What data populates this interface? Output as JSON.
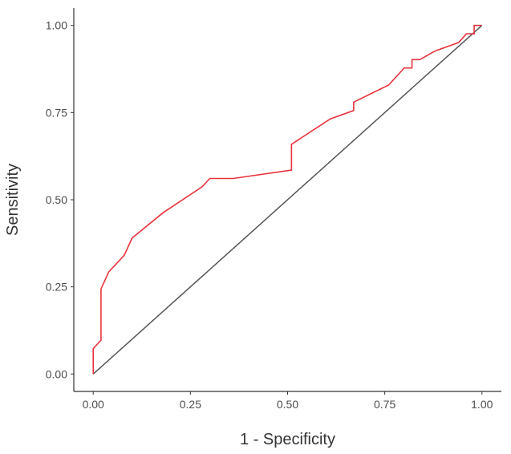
{
  "chart_data": {
    "type": "line",
    "title": "",
    "xlabel": "1 - Specificity",
    "ylabel": "Sensitivity",
    "xlim": [
      -0.05,
      1.05
    ],
    "ylim": [
      -0.05,
      1.05
    ],
    "xticks": [
      {
        "value": 0.0,
        "label": "0.00"
      },
      {
        "value": 0.25,
        "label": "0.25"
      },
      {
        "value": 0.5,
        "label": "0.50"
      },
      {
        "value": 0.75,
        "label": "0.75"
      },
      {
        "value": 1.0,
        "label": "1.00"
      }
    ],
    "yticks": [
      {
        "value": 0.0,
        "label": "0.00"
      },
      {
        "value": 0.25,
        "label": "0.25"
      },
      {
        "value": 0.5,
        "label": "0.50"
      },
      {
        "value": 0.75,
        "label": "0.75"
      },
      {
        "value": 1.0,
        "label": "1.00"
      }
    ],
    "grid": false,
    "legend": "none",
    "series": [
      {
        "color": "#e8323c",
        "points": [
          [
            0.0,
            0.0
          ],
          [
            0.0,
            0.073
          ],
          [
            0.02,
            0.097
          ],
          [
            0.02,
            0.244
          ],
          [
            0.04,
            0.293
          ],
          [
            0.08,
            0.341
          ],
          [
            0.1,
            0.39
          ],
          [
            0.18,
            0.463
          ],
          [
            0.28,
            0.537
          ],
          [
            0.3,
            0.561
          ],
          [
            0.36,
            0.561
          ],
          [
            0.51,
            0.585
          ],
          [
            0.51,
            0.659
          ],
          [
            0.61,
            0.732
          ],
          [
            0.67,
            0.756
          ],
          [
            0.67,
            0.78
          ],
          [
            0.76,
            0.829
          ],
          [
            0.8,
            0.878
          ],
          [
            0.82,
            0.878
          ],
          [
            0.82,
            0.902
          ],
          [
            0.84,
            0.902
          ],
          [
            0.88,
            0.927
          ],
          [
            0.94,
            0.951
          ],
          [
            0.96,
            0.976
          ],
          [
            0.98,
            0.976
          ],
          [
            0.98,
            1.0
          ],
          [
            1.0,
            1.0
          ]
        ]
      }
    ],
    "reference_line": {
      "from": [
        0,
        0
      ],
      "to": [
        1,
        1
      ],
      "color": "#555555"
    }
  }
}
